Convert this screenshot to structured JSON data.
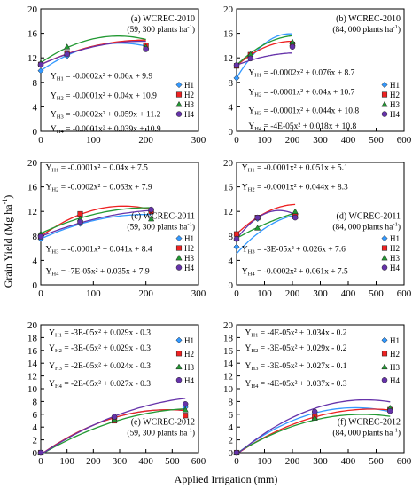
{
  "figure": {
    "ylabel": "Grain Yield (Mg ha",
    "ylabel_sup": "-1",
    "ylabel_end": ")",
    "xlabel": "Applied Irrigation (mm)"
  },
  "series_colors": {
    "H1": "#3399ff",
    "H2": "#ee2222",
    "H3": "#229933",
    "H4": "#6633aa"
  },
  "chart_data": [
    {
      "id": "a",
      "type": "scatter",
      "legend": "right",
      "title": "(a) WCREC-2010",
      "density": "(59, 300 plants ha",
      "density_sup": "-1",
      "density_end": ")",
      "xlim": [
        0,
        300
      ],
      "ylim": [
        0,
        20
      ],
      "xticks": [
        "0",
        "100",
        "200",
        "300"
      ],
      "yticks": [
        "0",
        "4",
        "8",
        "12",
        "16",
        "20"
      ],
      "series": [
        {
          "name": "H1",
          "x": [
            0,
            50,
            200
          ],
          "y": [
            9.9,
            12.3,
            13.5
          ],
          "fit": [
            -0.0002,
            0.06,
            9.9
          ],
          "eq": [
            "Y",
            "H1",
            " = -0.0002x² + 0.06x + 9.9"
          ]
        },
        {
          "name": "H2",
          "x": [
            0,
            50,
            200
          ],
          "y": [
            10.9,
            12.8,
            14.0
          ],
          "fit": [
            -0.0001,
            0.04,
            10.9
          ],
          "eq": [
            "Y",
            "H2",
            " = -0.0001x² + 0.04x + 10.9"
          ]
        },
        {
          "name": "H3",
          "x": [
            0,
            50,
            200
          ],
          "y": [
            11.2,
            13.8,
            13.8
          ],
          "fit": [
            -0.0002,
            0.059,
            11.2
          ],
          "eq": [
            "Y",
            "H3",
            " = -0.0002x² + 0.059x + 11.2"
          ]
        },
        {
          "name": "H4",
          "x": [
            0,
            50,
            200
          ],
          "y": [
            10.9,
            12.6,
            13.4
          ],
          "fit": [
            -0.0001,
            0.039,
            10.9
          ],
          "eq": [
            "Y",
            "H4",
            " = -0.0001x² + 0.039x + 10.9"
          ]
        }
      ]
    },
    {
      "id": "b",
      "type": "scatter",
      "legend": "right",
      "title": "(b) WCREC-2010",
      "density": "(84, 000 plants ha",
      "density_sup": "-1",
      "density_end": ")",
      "xlim": [
        0,
        600
      ],
      "ylim": [
        0,
        20
      ],
      "xticks": [
        "0",
        "100",
        "200",
        "300",
        "400",
        "500",
        "600"
      ],
      "yticks": [
        "0",
        "4",
        "8",
        "12",
        "16",
        "20"
      ],
      "series": [
        {
          "name": "H1",
          "x": [
            0,
            50,
            200
          ],
          "y": [
            8.7,
            12.0,
            14.0
          ],
          "fit": [
            -0.0002,
            0.076,
            8.7
          ],
          "eq": [
            "Y",
            "H1",
            " = -0.0002x² + 0.076x + 8.7"
          ]
        },
        {
          "name": "H2",
          "x": [
            0,
            50,
            200
          ],
          "y": [
            10.7,
            12.5,
            14.2
          ],
          "fit": [
            -0.0001,
            0.04,
            10.7
          ],
          "eq": [
            "Y",
            "H2",
            " = -0.0001x² + 0.04x + 10.7"
          ]
        },
        {
          "name": "H3",
          "x": [
            0,
            50,
            200
          ],
          "y": [
            10.8,
            12.6,
            14.6
          ],
          "fit": [
            -0.0001,
            0.044,
            10.8
          ],
          "eq": [
            "Y",
            "H3",
            " = -0.0001x² + 0.044x + 10.8"
          ]
        },
        {
          "name": "H4",
          "x": [
            0,
            50,
            200
          ],
          "y": [
            10.8,
            11.9,
            13.8
          ],
          "fit": [
            -4e-05,
            0.018,
            10.8
          ],
          "eq": [
            "Y",
            "H4",
            " = -4E-05x² + 0.018x + 10.8"
          ]
        }
      ]
    },
    {
      "id": "c",
      "type": "scatter",
      "legend": "right",
      "title": "(c) WCREC-2011",
      "density": "(59, 300 plants ha",
      "density_sup": "-1",
      "density_end": ")",
      "xlim": [
        0,
        300
      ],
      "ylim": [
        0,
        20
      ],
      "xticks": [
        "0",
        "100",
        "200",
        "300"
      ],
      "yticks": [
        "0",
        "4",
        "8",
        "12",
        "16",
        "20"
      ],
      "series": [
        {
          "name": "H1",
          "x": [
            0,
            75,
            210
          ],
          "y": [
            7.5,
            10.0,
            12.0
          ],
          "fit": [
            -0.0001,
            0.04,
            7.5
          ],
          "eq": [
            "Y",
            "H1",
            " = -0.0001x² + 0.04x + 7.5"
          ]
        },
        {
          "name": "H2",
          "x": [
            0,
            75,
            210
          ],
          "y": [
            7.9,
            11.6,
            12.0
          ],
          "fit": [
            -0.0002,
            0.063,
            7.9
          ],
          "eq": [
            "Y",
            "H2",
            " = -0.0002x² + 0.063x + 7.9"
          ]
        },
        {
          "name": "H3",
          "x": [
            0,
            75,
            210
          ],
          "y": [
            8.4,
            10.8,
            10.8
          ],
          "fit": [
            -0.0001,
            0.041,
            8.4
          ],
          "eq": [
            "Y",
            "H3",
            " = -0.0001x² + 0.041x + 8.4"
          ]
        },
        {
          "name": "H4",
          "x": [
            0,
            75,
            210
          ],
          "y": [
            7.9,
            10.3,
            12.3
          ],
          "fit": [
            -7e-05,
            0.035,
            7.9
          ],
          "eq": [
            "Y",
            "H4",
            " = -7E-05x² + 0.035x + 7.9"
          ]
        }
      ]
    },
    {
      "id": "d",
      "type": "scatter",
      "legend": "right",
      "title": "(d) WCREC-2011",
      "density": "(84, 000 plants ha",
      "density_sup": "-1",
      "density_end": ")",
      "xlim": [
        0,
        600
      ],
      "ylim": [
        0,
        20
      ],
      "xticks": [
        "0",
        "100",
        "200",
        "300",
        "400",
        "500",
        "600"
      ],
      "yticks": [
        "0",
        "4",
        "8",
        "12",
        "16",
        "20"
      ],
      "series": [
        {
          "name": "H1",
          "x": [
            0,
            75,
            210
          ],
          "y": [
            6.2,
            10.8,
            11.5
          ],
          "fit": [
            -0.0001,
            0.051,
            5.1
          ],
          "eq": [
            "Y",
            "H1",
            " = -0.0001x² + 0.051x + 5.1"
          ]
        },
        {
          "name": "H2",
          "x": [
            0,
            75,
            210
          ],
          "y": [
            8.3,
            11.0,
            11.2
          ],
          "fit": [
            -0.0001,
            0.044,
            8.3
          ],
          "eq": [
            "Y",
            "H2",
            " = -0.0001x² + 0.044x + 8.3"
          ]
        },
        {
          "name": "H3",
          "x": [
            0,
            75,
            210
          ],
          "y": [
            7.6,
            9.3,
            12.0
          ],
          "fit": [
            -3e-05,
            0.026,
            7.6
          ],
          "eq": [
            "Y",
            "H3",
            " = -3E-05x² + 0.026x + 7.6"
          ]
        },
        {
          "name": "H4",
          "x": [
            0,
            75,
            210
          ],
          "y": [
            7.5,
            11.0,
            11.0
          ],
          "fit": [
            -0.0002,
            0.061,
            7.5
          ],
          "eq": [
            "Y",
            "H4",
            " = -0.0002x² + 0.061x + 7.5"
          ]
        }
      ]
    },
    {
      "id": "e",
      "type": "scatter",
      "legend": "right",
      "title": "(e) WCREC-2012",
      "density": "(59, 300 plants ha",
      "density_sup": "-1",
      "density_end": ")",
      "xlim": [
        0,
        600
      ],
      "ylim": [
        0,
        20
      ],
      "xticks": [
        "0",
        "100",
        "200",
        "300",
        "400",
        "500",
        "600"
      ],
      "yticks": [
        "0",
        "2",
        "4",
        "6",
        "8",
        "10",
        "12",
        "14",
        "16",
        "18",
        "20"
      ],
      "series": [
        {
          "name": "H1",
          "x": [
            0,
            280,
            550
          ],
          "y": [
            0,
            5.4,
            7.1
          ],
          "fit": [
            -3e-05,
            0.029,
            -0.3
          ],
          "eq": [
            "Y",
            "H1",
            " = -3E-05x² + 0.029x - 0.3"
          ]
        },
        {
          "name": "H2",
          "x": [
            0,
            280,
            550
          ],
          "y": [
            0,
            5.0,
            5.8
          ],
          "fit": [
            -3e-05,
            0.029,
            -0.3
          ],
          "eq": [
            "Y",
            "H2",
            " = -3E-05x² + 0.029x - 0.3"
          ]
        },
        {
          "name": "H3",
          "x": [
            0,
            280,
            550
          ],
          "y": [
            0,
            5.2,
            6.7
          ],
          "fit": [
            -2e-05,
            0.024,
            -0.3
          ],
          "eq": [
            "Y",
            "H3",
            " = -2E-05x² + 0.024x - 0.3"
          ]
        },
        {
          "name": "H4",
          "x": [
            0,
            280,
            550
          ],
          "y": [
            0,
            5.6,
            7.6
          ],
          "fit": [
            -2e-05,
            0.027,
            -0.3
          ],
          "eq": [
            "Y",
            "H4",
            " = -2E-05x² + 0.027x - 0.3"
          ]
        }
      ]
    },
    {
      "id": "f",
      "type": "scatter",
      "legend": "right",
      "title": "(f) WCREC-2012",
      "density": "(84, 000 plants ha",
      "density_sup": "-1",
      "density_end": ")",
      "xlim": [
        0,
        600
      ],
      "ylim": [
        0,
        20
      ],
      "xticks": [
        "0",
        "100",
        "200",
        "300",
        "400",
        "500",
        "600"
      ],
      "yticks": [
        "0",
        "2",
        "4",
        "6",
        "8",
        "10",
        "12",
        "14",
        "16",
        "18",
        "20"
      ],
      "series": [
        {
          "name": "H1",
          "x": [
            0,
            280,
            550
          ],
          "y": [
            0,
            6.0,
            6.8
          ],
          "fit": [
            -4e-05,
            0.034,
            -0.2
          ],
          "eq": [
            "Y",
            "H1",
            " = -4E-05x² + 0.034x - 0.2"
          ]
        },
        {
          "name": "H2",
          "x": [
            0,
            280,
            550
          ],
          "y": [
            0,
            5.6,
            6.7
          ],
          "fit": [
            -3e-05,
            0.029,
            -0.2
          ],
          "eq": [
            "Y",
            "H2",
            " = -3E-05x² + 0.029x - 0.2"
          ]
        },
        {
          "name": "H3",
          "x": [
            0,
            280,
            550
          ],
          "y": [
            0,
            5.4,
            7.0
          ],
          "fit": [
            -3e-05,
            0.027,
            -0.1
          ],
          "eq": [
            "Y",
            "H3",
            " = -3E-05x² + 0.027x - 0.1"
          ]
        },
        {
          "name": "H4",
          "x": [
            0,
            280,
            550
          ],
          "y": [
            0,
            6.4,
            6.5
          ],
          "fit": [
            -4e-05,
            0.037,
            -0.3
          ],
          "eq": [
            "Y",
            "H4",
            " = -4E-05x² + 0.037x - 0.3"
          ]
        }
      ]
    }
  ]
}
